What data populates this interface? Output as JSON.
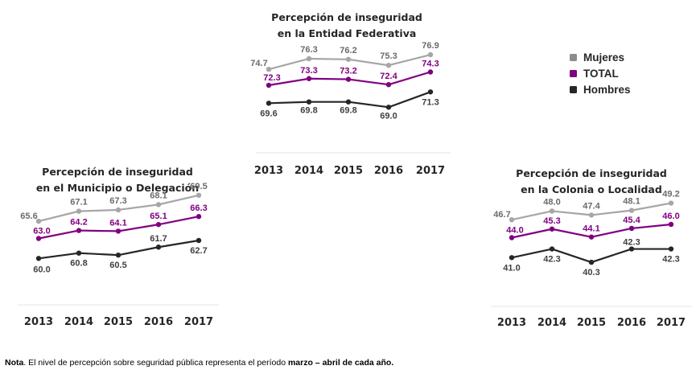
{
  "colors": {
    "Mujeres": "#a6a6a6",
    "TOTAL": "#800080",
    "Hombres": "#262626",
    "legend_Mujeres": "#8c8c8c",
    "baseline": "#eeeeee"
  },
  "legend": {
    "placement": "top-right",
    "items": [
      "Mujeres",
      "TOTAL",
      "Hombres"
    ]
  },
  "note": {
    "lead": "Nota",
    "text": ". El nivel de percepción sobre seguridad pública representa el período ",
    "emphasis": "marzo – abril de cada año."
  },
  "chart_data": [
    {
      "type": "line",
      "title": [
        "Percepción de inseguridad",
        "en la Entidad Federativa"
      ],
      "categories": [
        "2013",
        "2014",
        "2015",
        "2016",
        "2017"
      ],
      "xlabel": "",
      "ylabel": "",
      "ylim": [
        62.5,
        81.5
      ],
      "grid": false,
      "series": [
        {
          "name": "Mujeres",
          "values": [
            74.7,
            76.3,
            76.2,
            75.3,
            76.9
          ]
        },
        {
          "name": "TOTAL",
          "values": [
            72.3,
            73.3,
            73.2,
            72.4,
            74.3
          ]
        },
        {
          "name": "Hombres",
          "values": [
            69.6,
            69.8,
            69.8,
            69.0,
            71.3
          ]
        }
      ]
    },
    {
      "type": "line",
      "title": [
        "Percepción de inseguridad",
        "en el Municipio o Delegación"
      ],
      "categories": [
        "2013",
        "2014",
        "2015",
        "2016",
        "2017"
      ],
      "xlabel": "",
      "ylabel": "",
      "ylim": [
        53.5,
        72.5
      ],
      "grid": false,
      "series": [
        {
          "name": "Mujeres",
          "values": [
            65.6,
            67.1,
            67.3,
            68.1,
            69.5
          ]
        },
        {
          "name": "TOTAL",
          "values": [
            63.0,
            64.2,
            64.1,
            65.1,
            66.3
          ]
        },
        {
          "name": "Hombres",
          "values": [
            60.0,
            60.8,
            60.5,
            61.7,
            62.7
          ]
        }
      ]
    },
    {
      "type": "line",
      "title": [
        "Percepción de inseguridad",
        "en la Colonia o Localidad"
      ],
      "categories": [
        "2013",
        "2014",
        "2015",
        "2016",
        "2017"
      ],
      "xlabel": "",
      "ylabel": "",
      "ylim": [
        34.5,
        53.5
      ],
      "grid": false,
      "series": [
        {
          "name": "Mujeres",
          "values": [
            46.7,
            48.0,
            47.4,
            48.1,
            49.2
          ]
        },
        {
          "name": "TOTAL",
          "values": [
            44.0,
            45.3,
            44.1,
            45.4,
            46.0
          ]
        },
        {
          "name": "Hombres",
          "values": [
            41.0,
            42.3,
            40.3,
            42.3,
            42.3
          ]
        }
      ]
    }
  ]
}
